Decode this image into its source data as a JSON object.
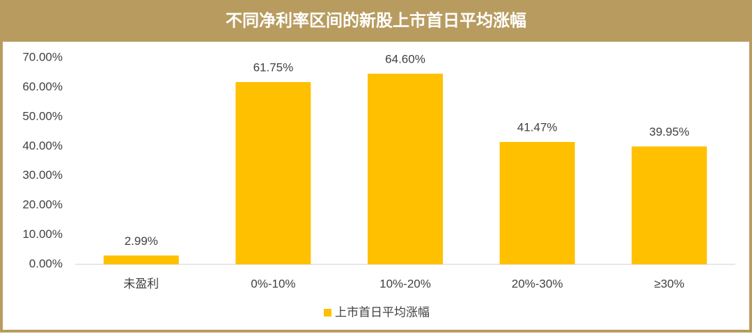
{
  "chart_data": {
    "type": "bar",
    "title": "不同净利率区间的新股上市首日平均涨幅",
    "categories": [
      "未盈利",
      "0%-10%",
      "10%-20%",
      "20%-30%",
      "≥30%"
    ],
    "series": [
      {
        "name": "上市首日平均涨幅",
        "color": "#ffc000",
        "values": [
          2.99,
          61.75,
          64.6,
          41.47,
          39.95
        ],
        "value_labels": [
          "2.99%",
          "61.75%",
          "64.60%",
          "41.47%",
          "39.95%"
        ]
      }
    ],
    "ylim": [
      0,
      70
    ],
    "yticks": [
      {
        "value": 0,
        "label": "0.00%"
      },
      {
        "value": 10,
        "label": "10.00%"
      },
      {
        "value": 20,
        "label": "20.00%"
      },
      {
        "value": 30,
        "label": "30.00%"
      },
      {
        "value": 40,
        "label": "40.00%"
      },
      {
        "value": 50,
        "label": "50.00%"
      },
      {
        "value": 60,
        "label": "60.00%"
      },
      {
        "value": 70,
        "label": "70.00%"
      }
    ],
    "legend": "bottom"
  }
}
